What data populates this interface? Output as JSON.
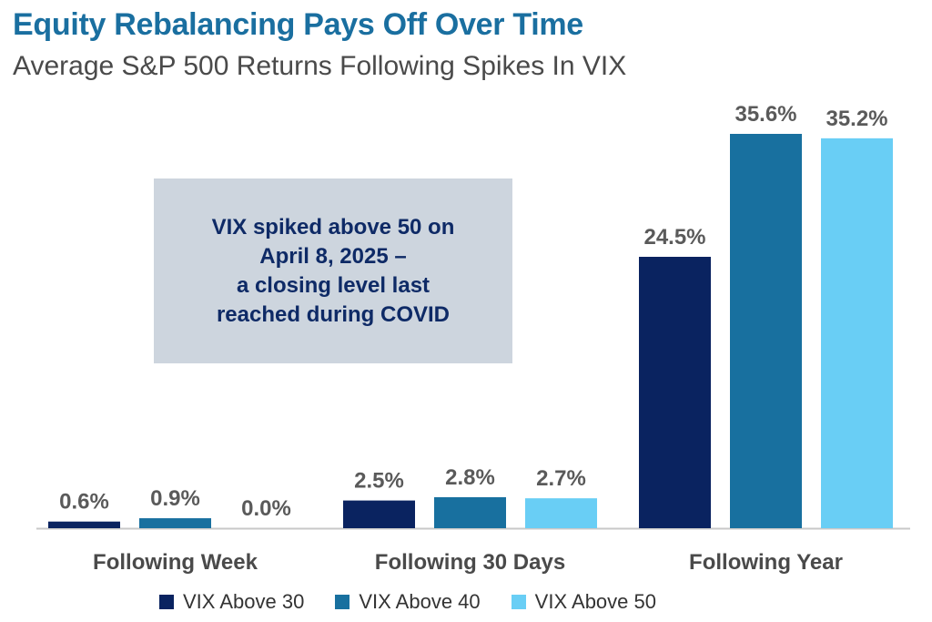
{
  "title": "Equity Rebalancing Pays Off Over Time",
  "subtitle": "Average S&P 500 Returns Following Spikes In VIX",
  "callout_text": "VIX spiked above 50 on\nApril 8, 2025 –\na closing level last\nreached during COVID",
  "chart_data": {
    "type": "bar",
    "categories": [
      "Following Week",
      "Following 30 Days",
      "Following Year"
    ],
    "series": [
      {
        "name": "VIX Above 30",
        "color": "#0a2360",
        "values": [
          0.6,
          2.5,
          24.5
        ],
        "labels": [
          "0.6%",
          "2.5%",
          "24.5%"
        ]
      },
      {
        "name": "VIX Above 40",
        "color": "#18709f",
        "values": [
          0.9,
          2.8,
          35.6
        ],
        "labels": [
          "0.9%",
          "2.8%",
          "35.6%"
        ]
      },
      {
        "name": "VIX Above 50",
        "color": "#69cef5",
        "values": [
          0.0,
          2.7,
          35.2
        ],
        "labels": [
          "0.0%",
          "2.7%",
          "35.2%"
        ]
      }
    ],
    "ylim": [
      0,
      36
    ],
    "legend_position": "bottom",
    "grid": false
  }
}
